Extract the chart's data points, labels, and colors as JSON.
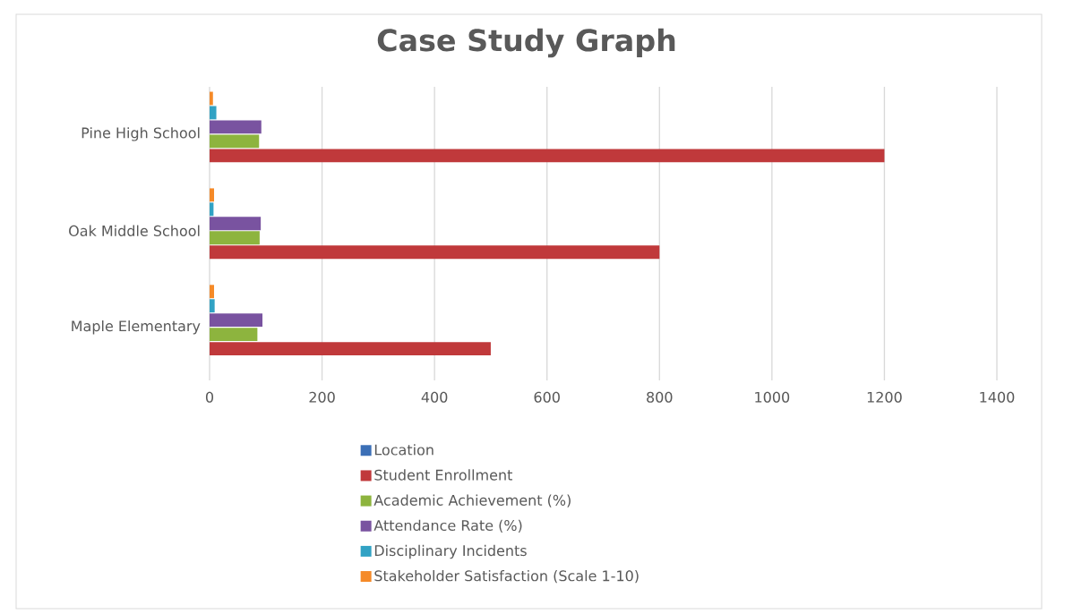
{
  "chart_data": {
    "type": "bar",
    "orientation": "horizontal",
    "title": "Case Study Graph",
    "categories": [
      "Pine High School",
      "Oak Middle School",
      "Maple Elementary"
    ],
    "series": [
      {
        "name": "Location",
        "color": "#3b6fb6",
        "values": [
          null,
          null,
          null
        ]
      },
      {
        "name": "Student Enrollment",
        "color": "#c0393b",
        "values": [
          1200,
          800,
          500
        ]
      },
      {
        "name": "Academic Achievement (%)",
        "color": "#8db43e",
        "values": [
          88,
          89,
          85
        ]
      },
      {
        "name": "Attendance Rate (%)",
        "color": "#7953a0",
        "values": [
          92,
          91,
          94
        ]
      },
      {
        "name": "Disciplinary Incidents",
        "color": "#31a2c4",
        "values": [
          12,
          7,
          9
        ]
      },
      {
        "name": "Stakeholder Satisfaction (Scale 1-10)",
        "color": "#f58a28",
        "values": [
          6,
          8,
          8
        ]
      }
    ],
    "xlim": [
      0,
      1400
    ],
    "xticks": [
      0,
      200,
      400,
      600,
      800,
      1000,
      1200,
      1400
    ],
    "grid": "x",
    "legend": "bottom"
  }
}
